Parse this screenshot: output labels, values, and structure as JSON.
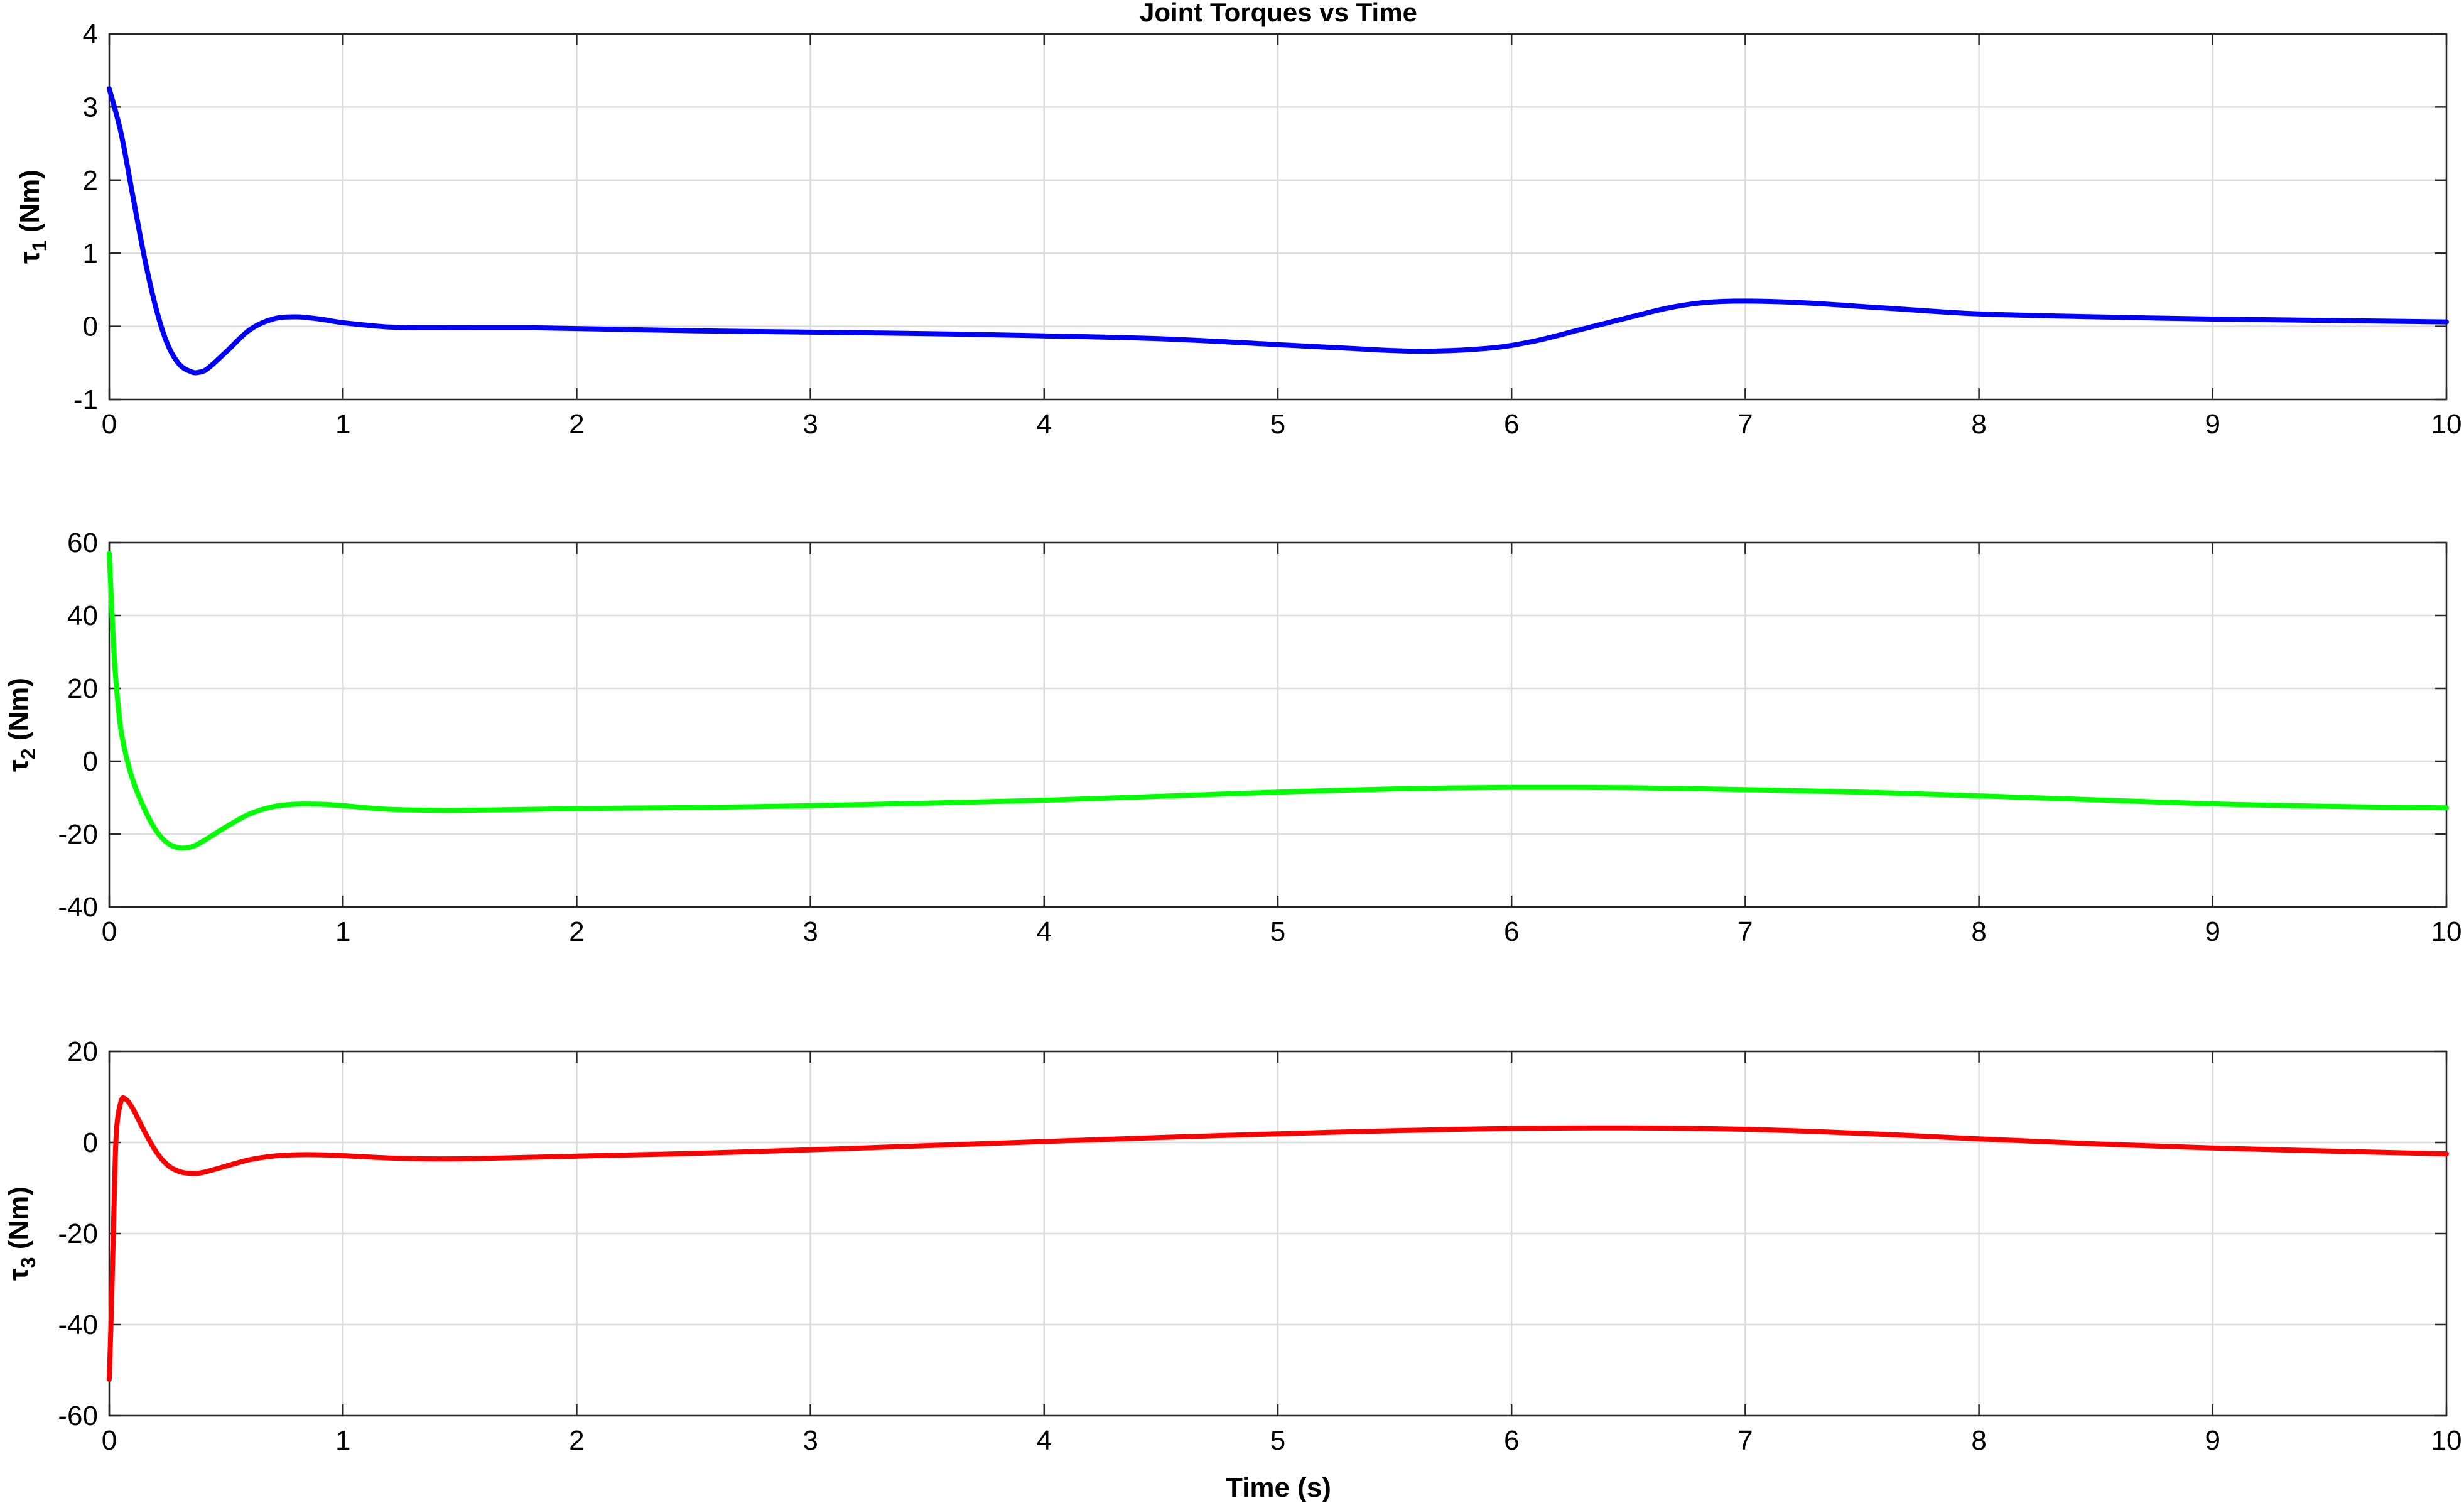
{
  "title": "Joint Torques vs Time",
  "xlabel": "Time (s)",
  "chart_data": [
    {
      "type": "line",
      "ylabel_symbol": "τ",
      "ylabel_sub": "1",
      "ylabel_unit": " (Nm)",
      "xlim": [
        0,
        10
      ],
      "ylim": [
        -1,
        4
      ],
      "xticks": [
        0,
        1,
        2,
        3,
        4,
        5,
        6,
        7,
        8,
        9,
        10
      ],
      "yticks": [
        -1,
        0,
        1,
        2,
        3,
        4
      ],
      "grid": true,
      "series": [
        {
          "color": "#0000ff",
          "x": [
            0,
            0.05,
            0.1,
            0.15,
            0.2,
            0.25,
            0.3,
            0.35,
            0.38,
            0.42,
            0.5,
            0.6,
            0.7,
            0.8,
            0.9,
            1.0,
            1.2,
            1.4,
            1.6,
            1.8,
            2.0,
            2.5,
            3.0,
            3.5,
            4.0,
            4.5,
            5.0,
            5.3,
            5.6,
            5.9,
            6.1,
            6.3,
            6.5,
            6.7,
            6.9,
            7.2,
            7.6,
            8.0,
            8.5,
            9.0,
            9.5,
            10.0
          ],
          "y": [
            3.25,
            2.65,
            1.8,
            0.95,
            0.25,
            -0.25,
            -0.52,
            -0.62,
            -0.63,
            -0.58,
            -0.35,
            -0.05,
            0.1,
            0.13,
            0.1,
            0.05,
            -0.01,
            -0.02,
            -0.02,
            -0.02,
            -0.03,
            -0.06,
            -0.08,
            -0.1,
            -0.13,
            -0.17,
            -0.25,
            -0.3,
            -0.34,
            -0.3,
            -0.2,
            -0.04,
            0.12,
            0.27,
            0.34,
            0.33,
            0.25,
            0.17,
            0.13,
            0.1,
            0.08,
            0.06
          ]
        }
      ]
    },
    {
      "type": "line",
      "ylabel_symbol": "τ",
      "ylabel_sub": "2",
      "ylabel_unit": " (Nm)",
      "xlim": [
        0,
        10
      ],
      "ylim": [
        -40,
        60
      ],
      "xticks": [
        0,
        1,
        2,
        3,
        4,
        5,
        6,
        7,
        8,
        9,
        10
      ],
      "yticks": [
        -40,
        -20,
        0,
        20,
        40,
        60
      ],
      "grid": true,
      "series": [
        {
          "color": "#00ff00",
          "x": [
            0,
            0.02,
            0.04,
            0.06,
            0.1,
            0.15,
            0.2,
            0.25,
            0.3,
            0.35,
            0.4,
            0.5,
            0.6,
            0.7,
            0.8,
            0.9,
            1.0,
            1.2,
            1.5,
            2.0,
            2.5,
            3.0,
            3.5,
            4.0,
            4.5,
            5.0,
            5.5,
            6.0,
            6.5,
            7.0,
            7.5,
            8.0,
            8.5,
            9.0,
            9.5,
            10.0
          ],
          "y": [
            57,
            30,
            14,
            5,
            -5,
            -13,
            -19,
            -22.5,
            -23.8,
            -23.5,
            -22,
            -18,
            -14.5,
            -12.5,
            -11.8,
            -11.8,
            -12.2,
            -13.2,
            -13.5,
            -13,
            -12.7,
            -12.2,
            -11.5,
            -10.7,
            -9.6,
            -8.5,
            -7.6,
            -7.2,
            -7.3,
            -7.8,
            -8.5,
            -9.5,
            -10.6,
            -11.7,
            -12.4,
            -12.8
          ]
        }
      ]
    },
    {
      "type": "line",
      "ylabel_symbol": "τ",
      "ylabel_sub": "3",
      "ylabel_unit": " (Nm)",
      "xlim": [
        0,
        10
      ],
      "ylim": [
        -60,
        20
      ],
      "xticks": [
        0,
        1,
        2,
        3,
        4,
        5,
        6,
        7,
        8,
        9,
        10
      ],
      "yticks": [
        -60,
        -40,
        -20,
        0,
        20
      ],
      "grid": true,
      "series": [
        {
          "color": "#ff0000",
          "x": [
            0,
            0.01,
            0.02,
            0.03,
            0.05,
            0.07,
            0.1,
            0.15,
            0.2,
            0.25,
            0.3,
            0.35,
            0.4,
            0.5,
            0.6,
            0.7,
            0.8,
            0.9,
            1.0,
            1.2,
            1.4,
            1.6,
            2.0,
            2.5,
            3.0,
            3.5,
            4.0,
            4.5,
            5.0,
            5.5,
            6.0,
            6.5,
            7.0,
            7.5,
            8.0,
            8.5,
            9.0,
            9.5,
            10.0
          ],
          "y": [
            -52,
            -35,
            -15,
            2,
            9,
            9.5,
            7.5,
            2.5,
            -2,
            -5,
            -6.4,
            -6.8,
            -6.6,
            -5.2,
            -3.8,
            -3,
            -2.7,
            -2.7,
            -2.9,
            -3.4,
            -3.6,
            -3.5,
            -3,
            -2.4,
            -1.6,
            -0.7,
            0.2,
            1.1,
            1.9,
            2.6,
            3.1,
            3.2,
            2.9,
            2,
            0.8,
            -0.3,
            -1.2,
            -1.9,
            -2.5
          ]
        }
      ]
    }
  ]
}
